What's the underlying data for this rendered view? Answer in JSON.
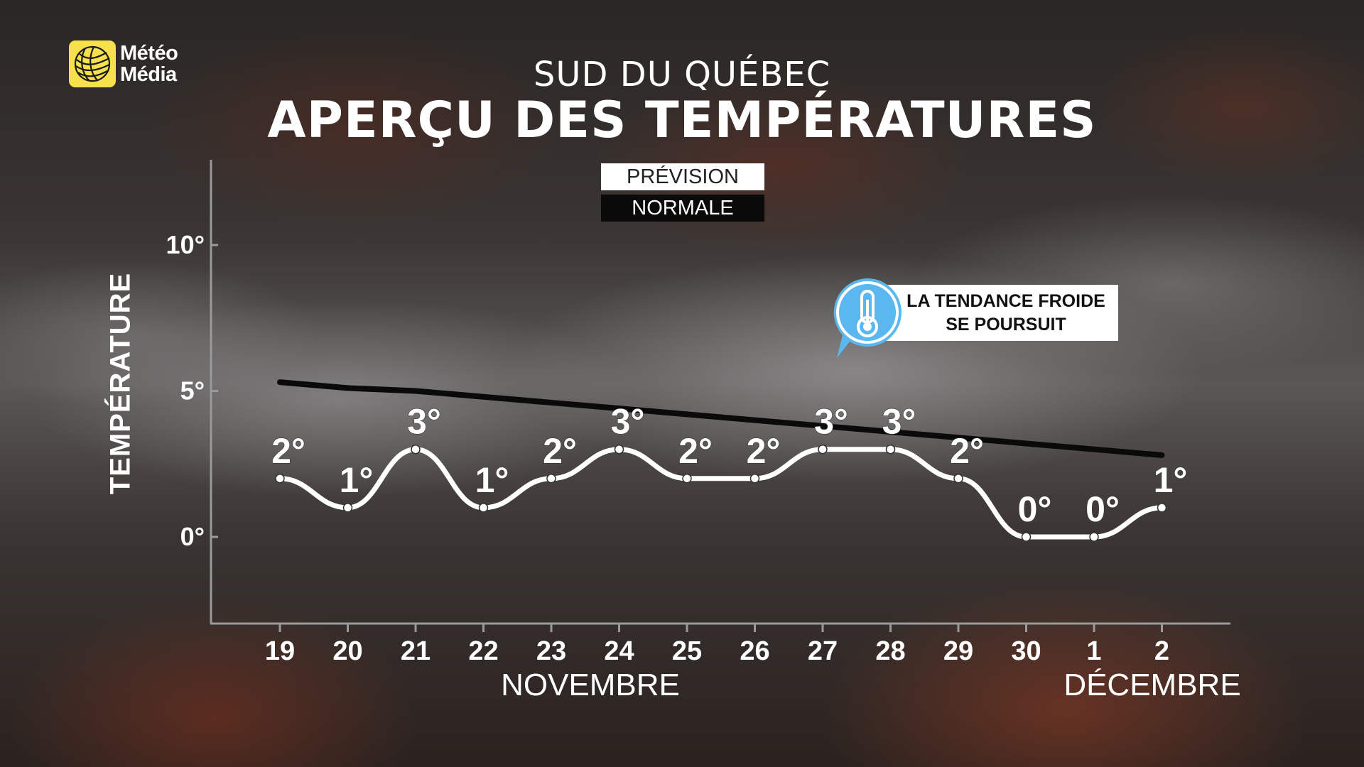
{
  "brand": {
    "line1": "Météo",
    "line2": "Média",
    "logo_color": "#f6e04b"
  },
  "header": {
    "subtitle": "SUD DU QUÉBEC",
    "title": "APERÇU DES TEMPÉRATURES"
  },
  "legend": {
    "forecast": "PRÉVISION",
    "normal": "NORMALE"
  },
  "callout": {
    "line1": "LA TENDANCE FROIDE",
    "line2": "SE POURSUIT",
    "icon": "thermometer-icon",
    "icon_color": "#5bb8ee"
  },
  "months": {
    "november": "NOVEMBRE",
    "december": "DÉCEMBRE"
  },
  "chart_data": {
    "type": "line",
    "ylabel": "TEMPÉRATURE",
    "ylim": [
      0,
      10
    ],
    "yticks": [
      0,
      5,
      10
    ],
    "ytick_labels": [
      "0°",
      "5°",
      "10°"
    ],
    "categories": [
      "19",
      "20",
      "21",
      "22",
      "23",
      "24",
      "25",
      "26",
      "27",
      "28",
      "29",
      "30",
      "1",
      "2"
    ],
    "series": [
      {
        "name": "PRÉVISION",
        "color": "#ffffff",
        "values": [
          2,
          1,
          3,
          1,
          2,
          3,
          2,
          2,
          3,
          3,
          2,
          0,
          0,
          1
        ],
        "labels": [
          "2°",
          "1°",
          "3°",
          "1°",
          "2°",
          "3°",
          "2°",
          "2°",
          "3°",
          "3°",
          "2°",
          "0°",
          "0°",
          "1°"
        ]
      },
      {
        "name": "NORMALE",
        "color": "#0a0a0a",
        "values": [
          5.3,
          5.1,
          5.0,
          4.8,
          4.6,
          4.4,
          4.2,
          4.0,
          3.8,
          3.6,
          3.4,
          3.2,
          3.0,
          2.8
        ]
      }
    ],
    "grid": false,
    "legend": "top-center"
  }
}
